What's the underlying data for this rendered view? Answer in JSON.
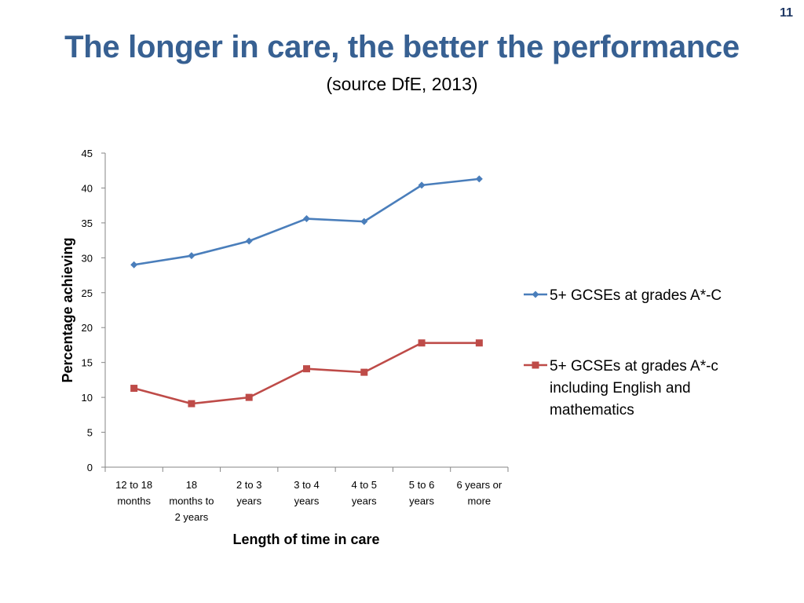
{
  "page": {
    "number": "11"
  },
  "header": {
    "title": "The longer in care, the better the performance",
    "subtitle": "(source DfE, 2013)"
  },
  "chart_data": {
    "type": "line",
    "title": "The longer in care, the better the performance",
    "subtitle": "(source DfE, 2013)",
    "xlabel": "Length of time in care",
    "ylabel": "Percentage achieving",
    "categories": [
      [
        "12 to 18",
        "months"
      ],
      [
        "18",
        "months to",
        "2 years"
      ],
      [
        "2 to 3",
        "years"
      ],
      [
        "3 to 4",
        "years"
      ],
      [
        "4 to 5",
        "years"
      ],
      [
        "5 to 6",
        "years"
      ],
      [
        "6 years or",
        "more"
      ]
    ],
    "ylim": [
      0,
      45
    ],
    "yticks": [
      0,
      5,
      10,
      15,
      20,
      25,
      30,
      35,
      40,
      45
    ],
    "grid": false,
    "legend_position": "right",
    "series": [
      {
        "name": "5+ GCSEs at grades A*-C",
        "legend_lines": [
          "5+ GCSEs at grades A*-C"
        ],
        "color": "#4a7ebb",
        "marker": "diamond",
        "values": [
          29.0,
          30.3,
          32.4,
          35.6,
          35.2,
          40.4,
          41.3
        ]
      },
      {
        "name": "5+ GCSEs at grades A*-c including English and mathematics",
        "legend_lines": [
          "5+ GCSEs at grades A*-c",
          "including English and",
          "mathematics"
        ],
        "color": "#be4b48",
        "marker": "square",
        "values": [
          11.3,
          9.1,
          10.0,
          14.1,
          13.6,
          17.8,
          17.8
        ]
      }
    ]
  }
}
